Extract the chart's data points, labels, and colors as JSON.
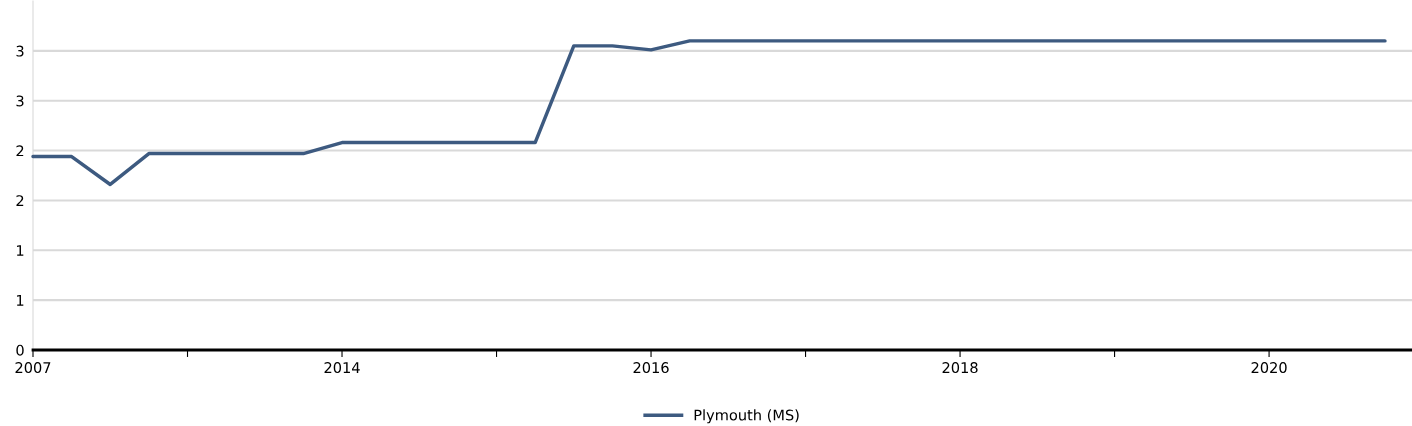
{
  "chart_data": {
    "type": "line",
    "categories": [
      "2007",
      null,
      null,
      null,
      null,
      null,
      null,
      null,
      "2014",
      null,
      null,
      null,
      null,
      null,
      null,
      null,
      "2016",
      null,
      null,
      null,
      null,
      null,
      null,
      null,
      "2018",
      null,
      null,
      null,
      null,
      null,
      null,
      null,
      "2020",
      null,
      null,
      null
    ],
    "series": [
      {
        "name": "Plymouth (MS)",
        "color": "#3d5a80",
        "values": [
          1.94,
          1.94,
          1.66,
          1.97,
          1.97,
          1.97,
          1.97,
          1.97,
          2.08,
          2.08,
          2.08,
          2.08,
          2.08,
          2.08,
          3.05,
          3.05,
          3.01,
          3.1,
          3.1,
          3.1,
          3.1,
          3.1,
          3.1,
          3.1,
          3.1,
          3.1,
          3.1,
          3.1,
          3.1,
          3.1,
          3.1,
          3.1,
          3.1,
          3.1,
          3.1,
          3.1
        ]
      }
    ],
    "ylim": [
      0,
      3.5
    ],
    "yticks": [
      {
        "value": 0,
        "label": "0"
      },
      {
        "value": 0.5,
        "label": "1"
      },
      {
        "value": 1,
        "label": "1"
      },
      {
        "value": 1.5,
        "label": "2"
      },
      {
        "value": 2,
        "label": "2"
      },
      {
        "value": 2.5,
        "label": "3"
      },
      {
        "value": 3,
        "label": "3"
      }
    ],
    "grid": "y",
    "legend": "bottom",
    "marker": "none",
    "line_style": "solid"
  }
}
